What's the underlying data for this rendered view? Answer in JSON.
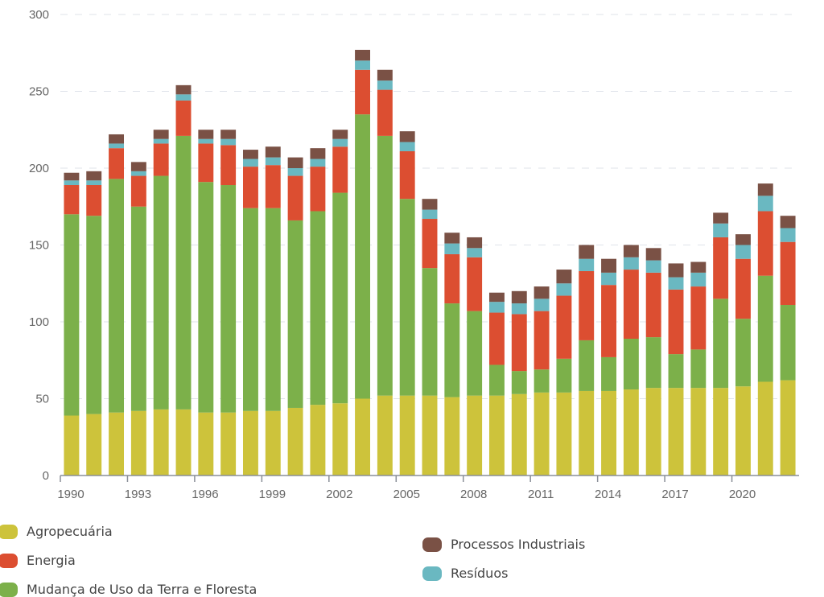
{
  "chart_data": {
    "type": "bar",
    "stacked": true,
    "title": "",
    "xlabel": "",
    "ylabel": "",
    "ylim": [
      0,
      300
    ],
    "yticks": [
      0,
      50,
      100,
      150,
      200,
      250,
      300
    ],
    "xtick_labels": [
      "1990",
      "1993",
      "1996",
      "1999",
      "2002",
      "2005",
      "2008",
      "2011",
      "2014",
      "2017",
      "2020"
    ],
    "grid": true,
    "legend_position": "bottom",
    "categories": [
      "1990",
      "1991",
      "1992",
      "1993",
      "1994",
      "1995",
      "1996",
      "1997",
      "1998",
      "1999",
      "2000",
      "2001",
      "2002",
      "2003",
      "2004",
      "2005",
      "2006",
      "2007",
      "2008",
      "2009",
      "2010",
      "2011",
      "2012",
      "2013",
      "2014",
      "2015",
      "2016",
      "2017",
      "2018",
      "2019",
      "2020",
      "2021",
      "2022"
    ],
    "series": [
      {
        "name": "Agropecuária",
        "color": "#cdc33b",
        "values": [
          39,
          40,
          41,
          42,
          43,
          43,
          41,
          41,
          42,
          42,
          44,
          46,
          47,
          50,
          52,
          52,
          52,
          51,
          52,
          52,
          53,
          54,
          54,
          55,
          55,
          56,
          57,
          57,
          57,
          57,
          58,
          61,
          62
        ]
      },
      {
        "name": "Mudança de Uso da Terra e Floresta",
        "color": "#7cb04a",
        "values": [
          131,
          129,
          152,
          133,
          152,
          178,
          150,
          148,
          132,
          132,
          122,
          126,
          137,
          185,
          169,
          128,
          83,
          61,
          55,
          20,
          15,
          15,
          22,
          33,
          22,
          33,
          33,
          22,
          25,
          58,
          44,
          69,
          49
        ]
      },
      {
        "name": "Energia",
        "color": "#dc4e31",
        "values": [
          19,
          20,
          20,
          20,
          21,
          23,
          25,
          26,
          27,
          28,
          29,
          29,
          30,
          29,
          30,
          31,
          32,
          32,
          35,
          34,
          37,
          38,
          41,
          45,
          47,
          45,
          42,
          42,
          41,
          40,
          39,
          42,
          41
        ]
      },
      {
        "name": "Resíduos",
        "color": "#6ab8c1",
        "values": [
          3,
          3,
          3,
          3,
          3,
          4,
          3,
          4,
          5,
          5,
          5,
          5,
          5,
          6,
          6,
          6,
          6,
          7,
          6,
          7,
          7,
          8,
          8,
          8,
          8,
          8,
          8,
          8,
          9,
          9,
          9,
          10,
          9
        ]
      },
      {
        "name": "Processos Industriais",
        "color": "#7a5145",
        "values": [
          5,
          6,
          6,
          6,
          6,
          6,
          6,
          6,
          6,
          7,
          7,
          7,
          6,
          7,
          7,
          7,
          7,
          7,
          7,
          6,
          8,
          8,
          9,
          9,
          9,
          8,
          8,
          9,
          7,
          7,
          7,
          8,
          8
        ]
      }
    ]
  },
  "legend": {
    "items": [
      {
        "label": "Agropecuária",
        "color": "#cdc33b"
      },
      {
        "label": "Energia",
        "color": "#dc4e31"
      },
      {
        "label": "Mudança de Uso da Terra e Floresta",
        "color": "#7cb04a"
      },
      {
        "label": "Processos Industriais",
        "color": "#7a5145"
      },
      {
        "label": "Resíduos",
        "color": "#6ab8c1"
      }
    ]
  }
}
